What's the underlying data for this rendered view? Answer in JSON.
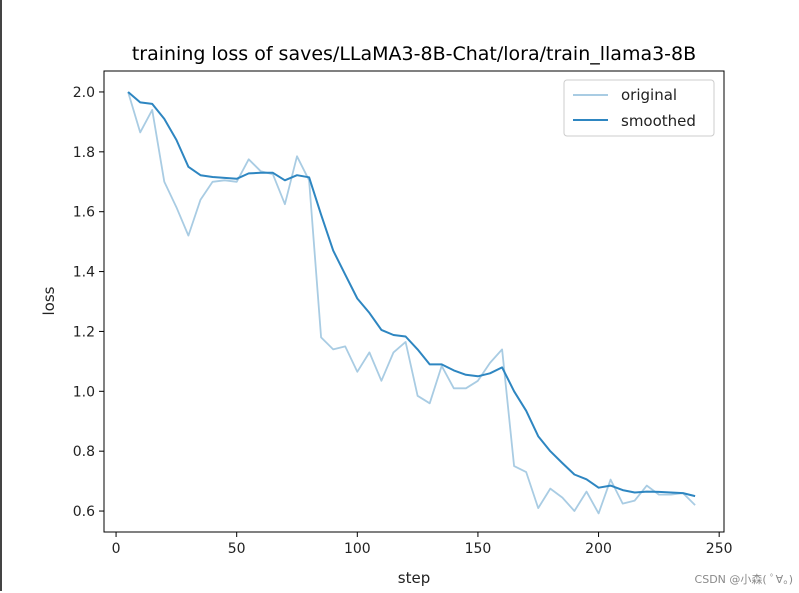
{
  "chart_data": {
    "type": "line",
    "title": "training loss of saves/LLaMA3-8B-Chat/lora/train_llama3-8B",
    "xlabel": "step",
    "ylabel": "loss",
    "xlim": [
      -5,
      252
    ],
    "ylim": [
      0.53,
      2.07
    ],
    "xticks": [
      0,
      50,
      100,
      150,
      200,
      250
    ],
    "yticks": [
      0.6,
      0.8,
      1.0,
      1.2,
      1.4,
      1.6,
      1.8,
      2.0
    ],
    "xtick_labels": [
      "0",
      "50",
      "100",
      "150",
      "200",
      "250"
    ],
    "ytick_labels": [
      "0.6",
      "0.8",
      "1.0",
      "1.2",
      "1.4",
      "1.6",
      "1.8",
      "2.0"
    ],
    "legend_position": "top-right",
    "series": [
      {
        "name": "original",
        "color": "#a9cce3",
        "x": [
          5,
          10,
          15,
          20,
          25,
          30,
          35,
          40,
          45,
          50,
          55,
          60,
          65,
          70,
          75,
          80,
          85,
          90,
          95,
          100,
          105,
          110,
          115,
          120,
          125,
          130,
          135,
          140,
          145,
          150,
          155,
          160,
          165,
          170,
          175,
          180,
          185,
          190,
          195,
          200,
          205,
          210,
          215,
          220,
          225,
          230,
          235,
          240
        ],
        "values": [
          2.0,
          1.865,
          1.94,
          1.7,
          1.615,
          1.52,
          1.64,
          1.7,
          1.705,
          1.7,
          1.775,
          1.735,
          1.725,
          1.625,
          1.785,
          1.705,
          1.18,
          1.14,
          1.15,
          1.065,
          1.13,
          1.035,
          1.13,
          1.165,
          0.985,
          0.96,
          1.085,
          1.01,
          1.01,
          1.035,
          1.095,
          1.14,
          0.75,
          0.73,
          0.61,
          0.675,
          0.645,
          0.6,
          0.665,
          0.592,
          0.705,
          0.625,
          0.635,
          0.685,
          0.655,
          0.655,
          0.66,
          0.62
        ]
      },
      {
        "name": "smoothed",
        "color": "#2e86c1",
        "x": [
          5,
          10,
          15,
          20,
          25,
          30,
          35,
          40,
          45,
          50,
          55,
          60,
          65,
          70,
          75,
          80,
          85,
          90,
          95,
          100,
          105,
          110,
          115,
          120,
          125,
          130,
          135,
          140,
          145,
          150,
          155,
          160,
          165,
          170,
          175,
          180,
          185,
          190,
          195,
          200,
          205,
          210,
          215,
          220,
          225,
          230,
          235,
          240
        ],
        "values": [
          2.0,
          1.965,
          1.96,
          1.91,
          1.84,
          1.75,
          1.722,
          1.716,
          1.713,
          1.71,
          1.728,
          1.73,
          1.73,
          1.705,
          1.722,
          1.715,
          1.59,
          1.47,
          1.39,
          1.31,
          1.262,
          1.205,
          1.188,
          1.183,
          1.14,
          1.09,
          1.09,
          1.07,
          1.055,
          1.05,
          1.06,
          1.08,
          1.0,
          0.935,
          0.85,
          0.8,
          0.76,
          0.722,
          0.706,
          0.678,
          0.685,
          0.67,
          0.662,
          0.665,
          0.664,
          0.662,
          0.66,
          0.65
        ]
      }
    ]
  },
  "watermark": "CSDN @小森( ﾟ∀。)"
}
